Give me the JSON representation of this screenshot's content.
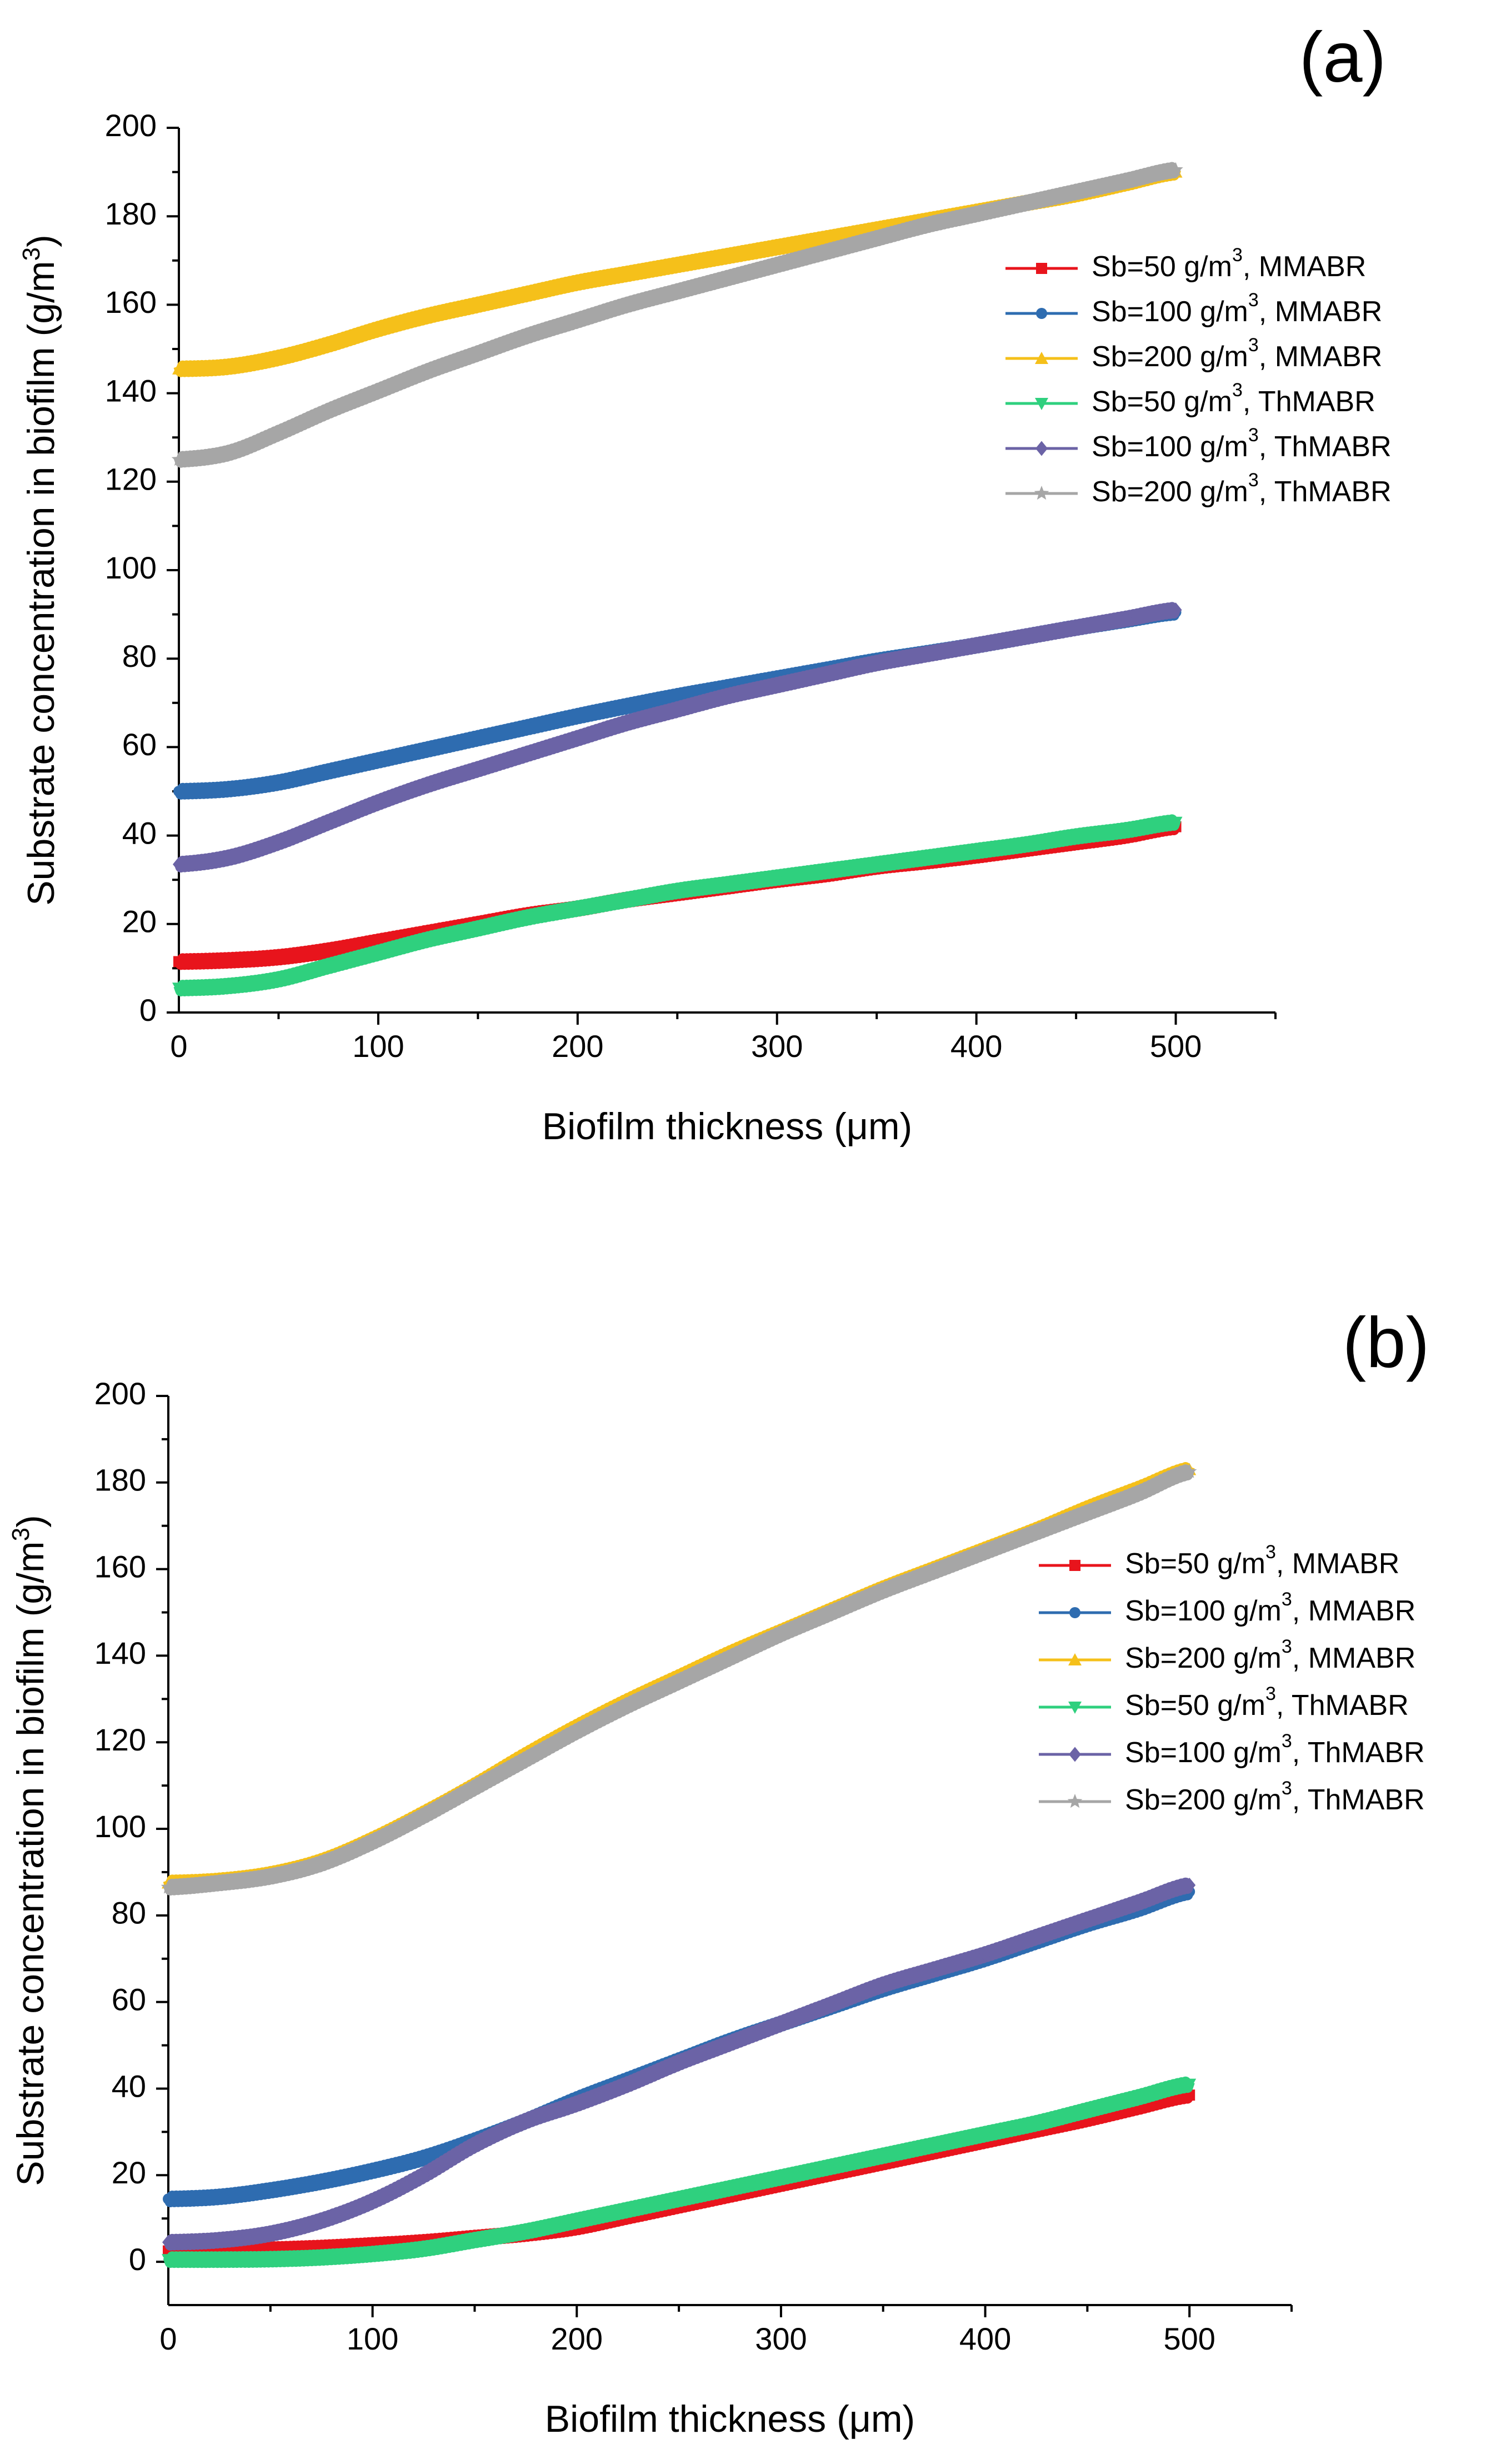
{
  "panels": [
    {
      "id": "a",
      "panel_label": "(a)",
      "chart_data": {
        "type": "line",
        "title": "",
        "xlabel": "Biofilm thickness (μm)",
        "ylabel_main": "Substrate concentration in biofilm (g/m",
        "ylabel_sup": "3",
        "ylabel_close": ")",
        "xlim": [
          0,
          550
        ],
        "ylim": [
          0,
          200
        ],
        "xticks": [
          0,
          100,
          200,
          300,
          400,
          500
        ],
        "yticks": [
          0,
          20,
          40,
          60,
          80,
          100,
          120,
          140,
          160,
          180,
          200
        ],
        "x": [
          0,
          25,
          50,
          75,
          100,
          125,
          150,
          175,
          200,
          225,
          250,
          275,
          300,
          325,
          350,
          375,
          400,
          425,
          450,
          475,
          500
        ],
        "series": [
          {
            "name": "Sb=50 g/m",
            "sup": "3",
            "suffix": ", MMABR",
            "color": "#e8141c",
            "marker": "square",
            "values": [
              11.5,
              11.8,
              12.5,
              14,
              16,
              18,
              20,
              22,
              23.5,
              25.5,
              27,
              28.5,
              30,
              31.3,
              33,
              34.2,
              35.5,
              37,
              38.5,
              40,
              42
            ]
          },
          {
            "name": "Sb=100 g/m",
            "sup": "3",
            "suffix": ", MMABR",
            "color": "#2e6cb0",
            "marker": "circle",
            "values": [
              50,
              50.5,
              52,
              54.5,
              57,
              59.5,
              62,
              64.5,
              67,
              69.3,
              71.5,
              73.5,
              75.5,
              77.5,
              79.5,
              81.2,
              83,
              85,
              87,
              88.8,
              90.5
            ]
          },
          {
            "name": "Sb=200 g/m",
            "sup": "3",
            "suffix": ", MMABR",
            "color": "#f5c01a",
            "marker": "triangle-up",
            "values": [
              145.5,
              146,
              148,
              151,
              154.5,
              157.5,
              160,
              162.5,
              165,
              167,
              169,
              171,
              173,
              175,
              177,
              179,
              181,
              183,
              185,
              187.5,
              190
            ]
          },
          {
            "name": "Sb=50 g/m",
            "sup": "3",
            "suffix": ", ThMABR",
            "color": "#2fd07e",
            "marker": "triangle-down",
            "values": [
              5.5,
              6,
              7.5,
              10.5,
              13.5,
              16.5,
              19,
              21.5,
              23.5,
              25.5,
              27.5,
              29,
              30.5,
              32,
              33.5,
              35,
              36.5,
              38,
              39.8,
              41.2,
              43
            ]
          },
          {
            "name": "Sb=100 g/m",
            "sup": "3",
            "suffix": ", ThMABR",
            "color": "#6b63a6",
            "marker": "diamond",
            "values": [
              33.5,
              35,
              38.5,
              43,
              47.5,
              51.5,
              55,
              58.5,
              62,
              65.5,
              68.5,
              71.5,
              74,
              76.5,
              79,
              81,
              83,
              85,
              87,
              89,
              91
            ]
          },
          {
            "name": "Sb=200 g/m",
            "sup": "3",
            "suffix": ", ThMABR",
            "color": "#a6a6a6",
            "marker": "star",
            "values": [
              125,
              126.5,
              131,
              136,
              140.5,
              145,
              149,
              153,
              156.5,
              160,
              163,
              166,
              169,
              172,
              175,
              178,
              180.5,
              183,
              185.5,
              188,
              190.5
            ]
          }
        ]
      }
    },
    {
      "id": "b",
      "panel_label": "(b)",
      "chart_data": {
        "type": "line",
        "title": "",
        "xlabel": "Biofilm thickness (μm)",
        "ylabel_main": "Substrate concentration in biofilm (g/m",
        "ylabel_sup": "3",
        "ylabel_close": ")",
        "xlim": [
          0,
          550
        ],
        "ylim": [
          -10,
          200
        ],
        "xticks": [
          0,
          100,
          200,
          300,
          400,
          500
        ],
        "yticks": [
          0,
          20,
          40,
          60,
          80,
          100,
          120,
          140,
          160,
          180,
          200
        ],
        "x": [
          0,
          25,
          50,
          75,
          100,
          125,
          150,
          175,
          200,
          225,
          250,
          275,
          300,
          325,
          350,
          375,
          400,
          425,
          450,
          475,
          500
        ],
        "series": [
          {
            "name": "Sb=50 g/m",
            "sup": "3",
            "suffix": ", MMABR",
            "color": "#e8141c",
            "marker": "square",
            "values": [
              2.5,
              2.6,
              2.8,
              3.2,
              3.8,
              4.5,
              5.5,
              6.5,
              8,
              10.5,
              13,
              15.5,
              18,
              20.5,
              23,
              25.5,
              28,
              30.5,
              33,
              35.8,
              38.5
            ]
          },
          {
            "name": "Sb=100 g/m",
            "sup": "3",
            "suffix": ", MMABR",
            "color": "#2e6cb0",
            "marker": "circle",
            "values": [
              14.5,
              15,
              16.5,
              18.5,
              21,
              24,
              28,
              32.5,
              37.5,
              42,
              46.5,
              51,
              55,
              59,
              63,
              66.5,
              70,
              74,
              78,
              81.5,
              85.5
            ]
          },
          {
            "name": "Sb=200 g/m",
            "sup": "3",
            "suffix": ", MMABR",
            "color": "#f5c01a",
            "marker": "triangle-up",
            "values": [
              87.5,
              88,
              89.5,
              92.5,
              97.5,
              103.5,
              110,
              117,
              123.5,
              129.5,
              135,
              140.5,
              145.5,
              150.5,
              155.5,
              160,
              164.5,
              169,
              174,
              178.5,
              183
            ]
          },
          {
            "name": "Sb=50 g/m",
            "sup": "3",
            "suffix": ", ThMABR",
            "color": "#2fd07e",
            "marker": "triangle-down",
            "values": [
              0.5,
              0.5,
              0.6,
              1,
              1.8,
              3,
              5,
              7,
              9.5,
              12,
              14.5,
              17,
              19.5,
              22,
              24.5,
              27,
              29.5,
              32,
              35,
              38,
              41
            ]
          },
          {
            "name": "Sb=100 g/m",
            "sup": "3",
            "suffix": ", ThMABR",
            "color": "#6b63a6",
            "marker": "diamond",
            "values": [
              4.5,
              5,
              6.5,
              9.5,
              14,
              20,
              27,
              32.5,
              36.5,
              41,
              46,
              50.5,
              55,
              59.5,
              64,
              67.5,
              71,
              75,
              79,
              83,
              87
            ]
          },
          {
            "name": "Sb=200 g/m",
            "sup": "3",
            "suffix": ", ThMABR",
            "color": "#a6a6a6",
            "marker": "star",
            "values": [
              86.5,
              87.5,
              89,
              92,
              97,
              103,
              109.5,
              116,
              122.5,
              128.5,
              134,
              139.5,
              145,
              150,
              155,
              159.5,
              164,
              168.5,
              173,
              177.5,
              182.5
            ]
          }
        ]
      }
    }
  ]
}
